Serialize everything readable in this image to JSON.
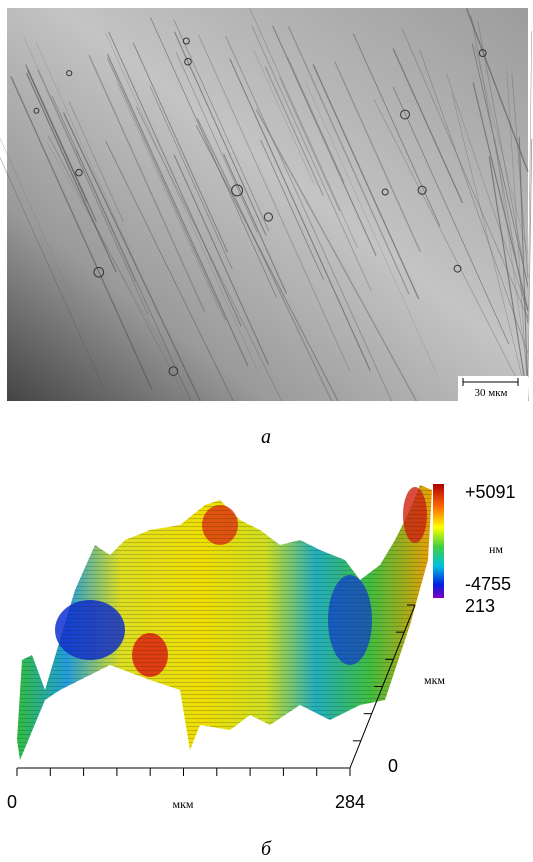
{
  "panel_a": {
    "scale_bar": "30 мкм",
    "caption": "а"
  },
  "panel_b": {
    "colorbar": {
      "max": "+5091",
      "unit": "нм",
      "min": "-4755"
    },
    "y_axis": {
      "max": "213",
      "label": "мкм",
      "min": "0"
    },
    "x_axis": {
      "min": "0",
      "label": "мкм",
      "max": "284"
    },
    "caption": "б"
  }
}
